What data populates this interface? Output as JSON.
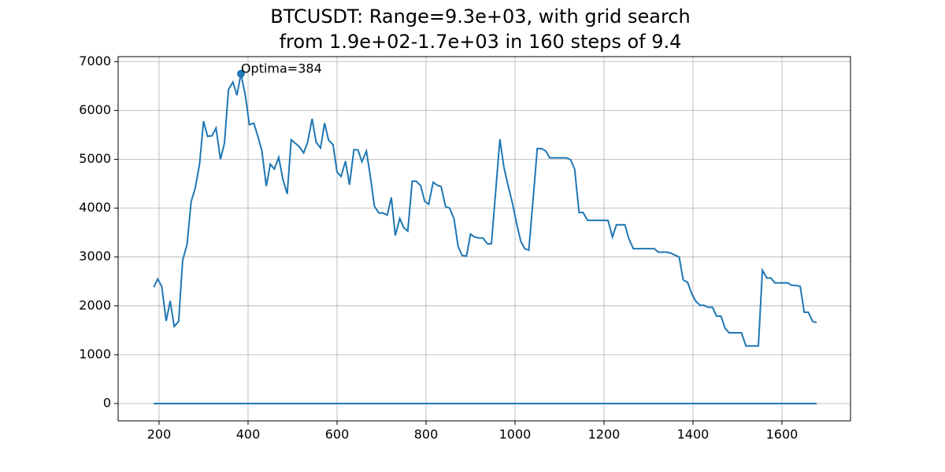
{
  "chart_data": {
    "type": "line",
    "title": [
      "BTCUSDT: Range=9.3e+03, with grid search",
      " from 1.9e+02-1.7e+03 in 160 steps of 9.4"
    ],
    "series": [
      {
        "color": "#1f77b4",
        "x": [
          188,
          197,
          206,
          216,
          225,
          234,
          244,
          253,
          263,
          272,
          281,
          291,
          300,
          309,
          319,
          328,
          338,
          347,
          356,
          366,
          375,
          384,
          394,
          403,
          413,
          422,
          431,
          441,
          450,
          459,
          469,
          478,
          488,
          497,
          506,
          516,
          525,
          534,
          544,
          553,
          563,
          572,
          581,
          591,
          600,
          609,
          619,
          628,
          638,
          647,
          656,
          666,
          675,
          684,
          694,
          703,
          713,
          722,
          731,
          741,
          750,
          759,
          769,
          778,
          788,
          797,
          806,
          816,
          825,
          834,
          844,
          853,
          863,
          872,
          881,
          891,
          900,
          909,
          919,
          928,
          938,
          947,
          966,
          975,
          985,
          994,
          1003,
          1013,
          1022,
          1031,
          1041,
          1050,
          1059,
          1069,
          1078,
          1088,
          1097,
          1106,
          1116,
          1125,
          1134,
          1144,
          1153,
          1163,
          1172,
          1181,
          1191,
          1200,
          1209,
          1219,
          1228,
          1238,
          1247,
          1256,
          1266,
          1275,
          1284,
          1294,
          1303,
          1313,
          1322,
          1331,
          1341,
          1350,
          1359,
          1369,
          1378,
          1388,
          1397,
          1406,
          1416,
          1425,
          1434,
          1444,
          1453,
          1463,
          1472,
          1481,
          1491,
          1500,
          1509,
          1519,
          1528,
          1538,
          1547,
          1556,
          1566,
          1575,
          1584,
          1594,
          1603,
          1613,
          1622,
          1631,
          1641,
          1650,
          1659,
          1669,
          1678
        ],
        "values": [
          2380,
          2550,
          2400,
          1690,
          2100,
          1580,
          1680,
          2930,
          3260,
          4130,
          4400,
          4900,
          5780,
          5470,
          5480,
          5640,
          5000,
          5330,
          6430,
          6580,
          6310,
          6750,
          6300,
          5710,
          5740,
          5470,
          5180,
          4450,
          4900,
          4800,
          5040,
          4600,
          4290,
          5400,
          5330,
          5250,
          5130,
          5350,
          5830,
          5350,
          5230,
          5740,
          5390,
          5300,
          4740,
          4650,
          4960,
          4480,
          5200,
          5190,
          4950,
          5170,
          4640,
          4040,
          3900,
          3900,
          3860,
          4220,
          3440,
          3790,
          3600,
          3530,
          4550,
          4550,
          4460,
          4140,
          4080,
          4530,
          4470,
          4440,
          4030,
          4000,
          3780,
          3220,
          3030,
          3020,
          3470,
          3410,
          3390,
          3390,
          3270,
          3270,
          5410,
          4840,
          4440,
          4110,
          3710,
          3320,
          3170,
          3140,
          4220,
          5220,
          5220,
          5170,
          5030,
          5030,
          5030,
          5030,
          5030,
          4990,
          4800,
          3910,
          3910,
          3750,
          3750,
          3750,
          3750,
          3750,
          3750,
          3410,
          3660,
          3660,
          3660,
          3370,
          3170,
          3170,
          3170,
          3170,
          3170,
          3170,
          3100,
          3100,
          3100,
          3080,
          3040,
          3000,
          2530,
          2480,
          2250,
          2100,
          2010,
          2010,
          1970,
          1970,
          1790,
          1790,
          1540,
          1450,
          1450,
          1450,
          1450,
          1180,
          1180,
          1180,
          1180,
          2730,
          2570,
          2570,
          2470,
          2470,
          2470,
          2470,
          2420,
          2420,
          2400,
          1870,
          1870,
          1680,
          1660
        ]
      },
      {
        "color": "#1f77b4",
        "x": [
          188,
          1678
        ],
        "values": [
          0,
          0
        ]
      }
    ],
    "annotations": [
      {
        "text": "Optima=384",
        "x": 384,
        "y": 6750,
        "color": "#1f77b4"
      }
    ],
    "xlim": [
      108,
      1754
    ],
    "ylim": [
      -354,
      7101
    ],
    "xticks": [
      200,
      400,
      600,
      800,
      1000,
      1200,
      1400,
      1600
    ],
    "yticks": [
      0,
      1000,
      2000,
      3000,
      4000,
      5000,
      6000,
      7000
    ],
    "grid": true
  }
}
